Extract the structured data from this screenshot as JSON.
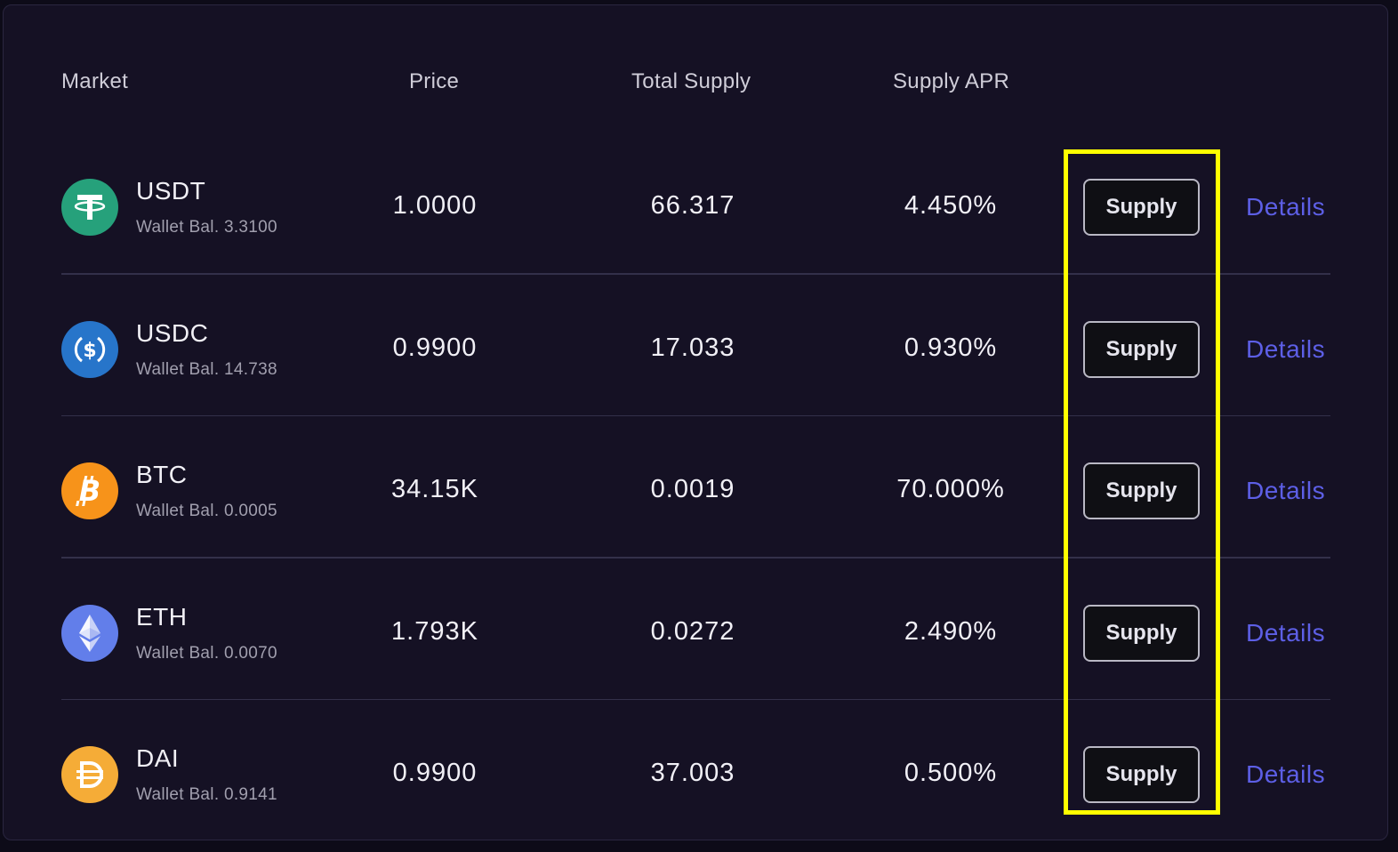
{
  "table": {
    "headers": {
      "market": "Market",
      "price": "Price",
      "total_supply": "Total Supply",
      "supply_apr": "Supply APR"
    },
    "rows": [
      {
        "symbol": "USDT",
        "wallet": "Wallet Bal. 3.3100",
        "price": "1.0000",
        "total_supply": "66.317",
        "apr": "4.450%",
        "supply_label": "Supply",
        "details_label": "Details",
        "icon": "tether-icon",
        "icon_color": "#26a17b"
      },
      {
        "symbol": "USDC",
        "wallet": "Wallet Bal. 14.738",
        "price": "0.9900",
        "total_supply": "17.033",
        "apr": "0.930%",
        "supply_label": "Supply",
        "details_label": "Details",
        "icon": "usdc-icon",
        "icon_color": "#2775ca"
      },
      {
        "symbol": "BTC",
        "wallet": "Wallet Bal. 0.0005",
        "price": "34.15K",
        "total_supply": "0.0019",
        "apr": "70.000%",
        "supply_label": "Supply",
        "details_label": "Details",
        "icon": "bitcoin-icon",
        "icon_color": "#f7931a"
      },
      {
        "symbol": "ETH",
        "wallet": "Wallet Bal. 0.0070",
        "price": "1.793K",
        "total_supply": "0.0272",
        "apr": "2.490%",
        "supply_label": "Supply",
        "details_label": "Details",
        "icon": "ethereum-icon",
        "icon_color": "#627eea"
      },
      {
        "symbol": "DAI",
        "wallet": "Wallet Bal. 0.9141",
        "price": "0.9900",
        "total_supply": "37.003",
        "apr": "0.500%",
        "supply_label": "Supply",
        "details_label": "Details",
        "icon": "dai-icon",
        "icon_color": "#f5ac37"
      }
    ]
  },
  "colors": {
    "background": "#151124",
    "accent_link": "#5d5fe6",
    "highlight": "#ffff00"
  }
}
